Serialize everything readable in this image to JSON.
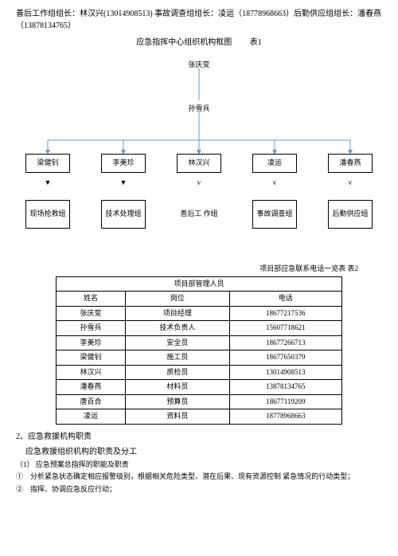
{
  "header": {
    "line": "善后工作组组长：林汉兴(13014908513) 事故调查组组长：凌运（18778968663）后勤供应组组长：潘春燕（13878134765）"
  },
  "title1": {
    "main": "应急指挥中心组织机构框图",
    "suffix": "表1"
  },
  "chart": {
    "top1": "张庆变",
    "top2": "孙雪兵",
    "leaders": [
      "梁健钊",
      "李美珍",
      "林汉兴",
      "凌运",
      "潘春燕"
    ],
    "markers": [
      "▼",
      "▼",
      "v",
      "v",
      "v"
    ],
    "groups": [
      "现场抢救组",
      "技术处理组",
      "善后工 作组",
      "事故调查组",
      "后勤供应组"
    ]
  },
  "title2": "项目部应急联系电话一览表 表2",
  "table": {
    "header": "项目部管理人员",
    "cols": [
      "姓名",
      "岗位",
      "电话"
    ],
    "rows": [
      [
        "张庆变",
        "项目经理",
        "18677217536"
      ],
      [
        "孙雪兵",
        "技术负责人",
        "15607718621"
      ],
      [
        "李美珍",
        "安全员",
        "18677266713"
      ],
      [
        "梁健钊",
        "施工员",
        "18677650379"
      ],
      [
        "林汉兴",
        "质检员",
        "13014908513"
      ],
      [
        "潘春燕",
        "材料员",
        "13878134765"
      ],
      [
        "唐百合",
        "预算员",
        "18677119209"
      ],
      [
        "凌运",
        "资料员",
        "18778968663"
      ]
    ]
  },
  "sections": {
    "s2": "2、应急救援机构职责",
    "s2a": "应急救援组织机构的职责及分工",
    "s2_1": "（1） 应急预案总指挥的职能及职责",
    "s2_1_1": "①　分析紧急状态确定相应报警级别，根据相关危险类型、潜在后果、现有资源控制 紧急情况的行动类型；",
    "s2_1_2": "②　指挥、协调应急反应行动；"
  }
}
